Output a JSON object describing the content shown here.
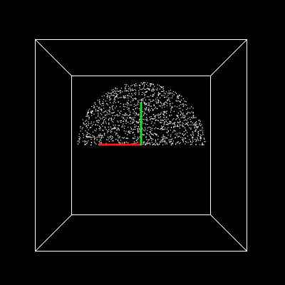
{
  "scene": {
    "background": "#000000",
    "box_color": "#ffffff",
    "point_color": "#ffffff",
    "point_cloud_shape": "upper hemisphere",
    "axes": {
      "x": {
        "color": "#ff1a1a"
      },
      "y": {
        "color": "#22dd22"
      }
    }
  }
}
